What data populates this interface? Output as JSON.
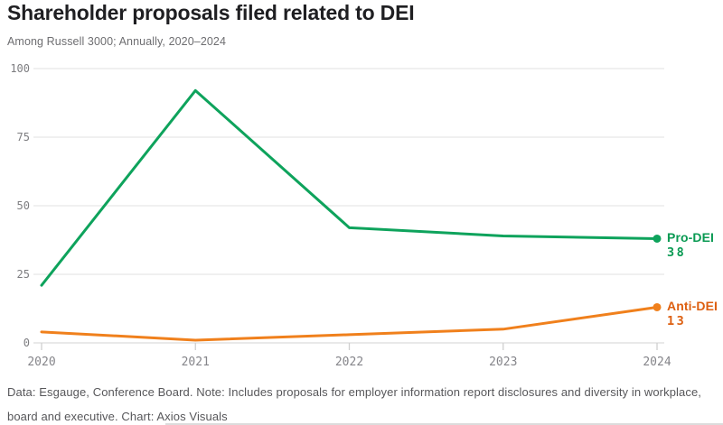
{
  "header": {
    "title": "Shareholder proposals filed related to DEI",
    "subtitle": "Among Russell 3000; Annually, 2020–2024"
  },
  "chart_data": {
    "type": "line",
    "title": "Shareholder proposals filed related to DEI",
    "subtitle": "Among Russell 3000; Annually, 2020–2024",
    "categories": [
      "2020",
      "2021",
      "2022",
      "2023",
      "2024"
    ],
    "yticks": [
      0,
      25,
      50,
      75,
      100
    ],
    "ylim": [
      0,
      100
    ],
    "grid": "horizontal-only",
    "legend_position": "end-of-line-labels-right",
    "series": [
      {
        "name": "Pro-DEI",
        "values": [
          21,
          92,
          42,
          39,
          38
        ],
        "color": "#0ea35c",
        "label_color": "#0a9a53"
      },
      {
        "name": "Anti-DEI",
        "values": [
          4,
          1,
          3,
          5,
          13
        ],
        "color": "#f0801c",
        "label_color": "#dd5f10"
      }
    ],
    "grid_color": "#e8e8e8",
    "axis_line_color": "#dcdcdc",
    "tick_color": "#d0d0d0"
  },
  "footer": {
    "note": "Data: Esgauge, Conference Board. Note: Includes proposals for employer information report disclosures and diversity in workplace, board and executive. Chart: Axios Visuals"
  }
}
